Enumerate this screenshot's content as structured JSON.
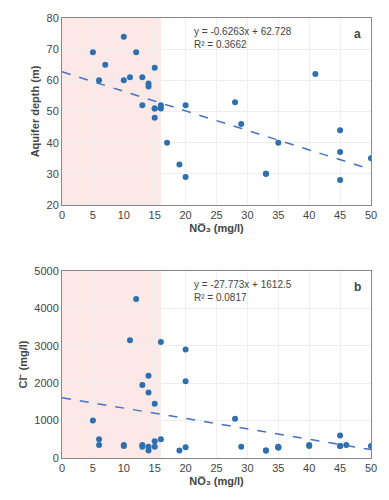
{
  "chart_data": [
    {
      "type": "scatter",
      "xlabel": "NO̅₃ (mg/l)",
      "ylabel": "Aquifer depth (m)",
      "xlim": [
        0,
        50
      ],
      "ylim": [
        20,
        80
      ],
      "xticks": [
        0,
        5,
        10,
        15,
        20,
        25,
        30,
        35,
        40,
        45,
        50
      ],
      "yticks": [
        20,
        30,
        40,
        50,
        60,
        70,
        80
      ],
      "grid": true,
      "annotations": [
        "y = -0.6263x + 62.728",
        "R² = 0.3662"
      ],
      "panel_label": "a",
      "span": {
        "x": [
          0,
          16
        ],
        "color": "#fce8e6"
      },
      "series": [
        {
          "type": "scatter",
          "marker": "circle",
          "color": "#2e6fad",
          "x": [
            5,
            6,
            7,
            10,
            10,
            11,
            12,
            13,
            13,
            14,
            14,
            15,
            15,
            15,
            15,
            16,
            16,
            17,
            19,
            20,
            20,
            28,
            29,
            33,
            33,
            35,
            41,
            45,
            45,
            45,
            50
          ],
          "values": [
            69,
            60,
            65,
            74,
            60,
            61,
            69,
            52,
            61,
            59,
            58,
            48,
            51,
            51,
            64,
            51,
            52,
            40,
            33,
            29,
            52,
            53,
            46,
            30,
            30,
            40,
            62,
            28,
            44,
            37,
            35
          ]
        },
        {
          "type": "line",
          "line_style": "dashed",
          "color": "#4472c4",
          "x": [
            0,
            50
          ],
          "values": [
            62.728,
            31.413
          ]
        }
      ]
    },
    {
      "type": "scatter",
      "xlabel": "NO̅₃ (mg/l)",
      "ylabel": "Cl⁻ (mg/l)",
      "xlim": [
        0,
        50
      ],
      "ylim": [
        0,
        5000
      ],
      "xticks": [
        0,
        5,
        10,
        15,
        20,
        25,
        30,
        35,
        40,
        45,
        50
      ],
      "yticks": [
        0,
        1000,
        2000,
        3000,
        4000,
        5000
      ],
      "grid": true,
      "annotations": [
        "y = -27.773x + 1612.5",
        "R² = 0.0817"
      ],
      "panel_label": "b",
      "span": {
        "x": [
          0,
          16
        ],
        "color": "#fce8e6"
      },
      "series": [
        {
          "type": "scatter",
          "marker": "circle",
          "color": "#2e6fad",
          "x": [
            5,
            6,
            6,
            10,
            10,
            11,
            12,
            13,
            13,
            13,
            14,
            14,
            14,
            14,
            15,
            15,
            15,
            16,
            16,
            19,
            20,
            20,
            20,
            28,
            29,
            33,
            33,
            35,
            35,
            35,
            40,
            40,
            45,
            45,
            45,
            46,
            50
          ],
          "values": [
            1000,
            500,
            350,
            350,
            320,
            3150,
            4250,
            300,
            350,
            1950,
            200,
            300,
            2200,
            1750,
            300,
            450,
            1450,
            3100,
            500,
            200,
            290,
            2900,
            2050,
            1050,
            300,
            200,
            200,
            300,
            280,
            280,
            350,
            320,
            600,
            320,
            320,
            350,
            320
          ]
        },
        {
          "type": "line",
          "line_style": "dashed",
          "color": "#4472c4",
          "x": [
            0,
            50
          ],
          "values": [
            1612.5,
            223.85
          ]
        }
      ]
    }
  ]
}
